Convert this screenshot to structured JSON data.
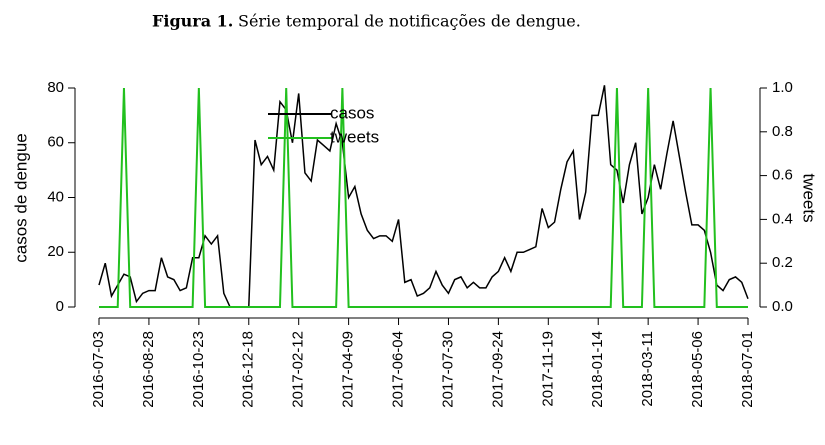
{
  "chart_data": {
    "type": "line",
    "title_label": "Figura 1.",
    "title": "Série temporal de notificações de dengue.",
    "y_label": "casos de dengue",
    "y2_label": "tweets",
    "categories": [
      "2016-07-03",
      null,
      null,
      null,
      null,
      null,
      null,
      null,
      "2016-08-28",
      null,
      null,
      null,
      null,
      null,
      null,
      null,
      "2016-10-23",
      null,
      null,
      null,
      null,
      null,
      null,
      null,
      "2016-12-18",
      null,
      null,
      null,
      null,
      null,
      null,
      null,
      "2017-02-12",
      null,
      null,
      null,
      null,
      null,
      null,
      null,
      "2017-04-09",
      null,
      null,
      null,
      null,
      null,
      null,
      null,
      "2017-06-04",
      null,
      null,
      null,
      null,
      null,
      null,
      null,
      "2017-07-30",
      null,
      null,
      null,
      null,
      null,
      null,
      null,
      "2017-09-24",
      null,
      null,
      null,
      null,
      null,
      null,
      null,
      "2017-11-19",
      null,
      null,
      null,
      null,
      null,
      null,
      null,
      "2018-01-14",
      null,
      null,
      null,
      null,
      null,
      null,
      null,
      "2018-03-11",
      null,
      null,
      null,
      null,
      null,
      null,
      null,
      "2018-05-06",
      null,
      null,
      null,
      null,
      null,
      null,
      null,
      "2018-07-01"
    ],
    "series": [
      {
        "name": "casos",
        "color": "#000000",
        "axis": "y",
        "values": [
          8,
          16,
          4,
          8,
          12,
          11,
          2,
          5,
          6,
          6,
          18,
          11,
          10,
          6,
          7,
          18,
          18,
          26,
          23,
          26,
          5,
          0,
          0,
          0,
          0,
          61,
          52,
          55,
          50,
          75,
          72,
          60,
          78,
          49,
          46,
          61,
          59,
          57,
          67,
          60,
          40,
          44,
          34,
          28,
          25,
          26,
          26,
          24,
          32,
          9,
          10,
          4,
          5,
          7,
          13,
          8,
          5,
          10,
          11,
          7,
          9,
          7,
          7,
          11,
          13,
          18,
          13,
          20,
          20,
          21,
          22,
          36,
          29,
          31,
          43,
          53,
          57,
          32,
          42,
          70,
          70,
          81,
          52,
          50,
          38,
          52,
          60,
          34,
          40,
          52,
          43,
          56,
          68,
          55,
          42,
          30,
          30,
          28,
          20,
          8,
          6,
          10,
          11,
          9,
          3
        ]
      },
      {
        "name": "tweets",
        "color": "#22c01e",
        "axis": "y2",
        "values": [
          0,
          0,
          0,
          0,
          1,
          0,
          0,
          0,
          0,
          0,
          0,
          0,
          0,
          0,
          0,
          0,
          1,
          0,
          0,
          0,
          0,
          0,
          0,
          0,
          0,
          0,
          0,
          0,
          0,
          0,
          1,
          0,
          0,
          0,
          0,
          0,
          0,
          0,
          0,
          1,
          0,
          0,
          0,
          0,
          0,
          0,
          0,
          0,
          0,
          0,
          0,
          0,
          0,
          0,
          0,
          0,
          0,
          0,
          0,
          0,
          0,
          0,
          0,
          0,
          0,
          0,
          0,
          0,
          0,
          0,
          0,
          0,
          0,
          0,
          0,
          0,
          0,
          0,
          0,
          0,
          0,
          0,
          0,
          1,
          0,
          0,
          0,
          0,
          1,
          0,
          0,
          0,
          0,
          0,
          0,
          0,
          0,
          0,
          1,
          0,
          0,
          0,
          0,
          0,
          0
        ]
      }
    ],
    "ylim": [
      0,
      80
    ],
    "yticks": [
      0,
      20,
      40,
      60,
      80
    ],
    "y2lim": [
      0,
      1
    ],
    "y2ticks": [
      {
        "value": 0,
        "label": "0.0"
      },
      0.2,
      0.4,
      0.6,
      0.8,
      {
        "value": 1,
        "label": "1.0"
      }
    ],
    "legend": "top"
  }
}
